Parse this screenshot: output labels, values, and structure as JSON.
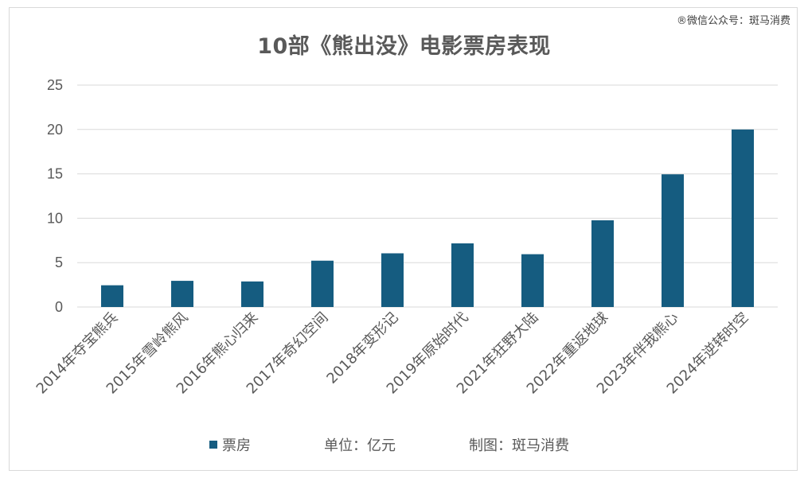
{
  "watermark": "®微信公众号：斑马消费",
  "colors": {
    "bar": "#155c80",
    "grid": "#d9d9d9",
    "text": "#595959"
  },
  "legend": {
    "series_label": "票房",
    "unit_note": "单位：亿元",
    "credit_note": "制图：斑马消费"
  },
  "chart_data": {
    "type": "bar",
    "title": "10部《熊出没》电影票房表现",
    "xlabel": "",
    "ylabel": "",
    "ylim": [
      0,
      25
    ],
    "yticks": [
      "0",
      "5",
      "10",
      "15",
      "20",
      "25"
    ],
    "grid": true,
    "legend_position": "bottom",
    "categories": [
      "2014年夺宝熊兵",
      "2015年雪岭熊风",
      "2016年熊心归来",
      "2017年奇幻空间",
      "2018年变形记",
      "2019年原始时代",
      "2021年狂野大陆",
      "2022年重返地球",
      "2023年伴我熊心",
      "2024年逆转时空"
    ],
    "series": [
      {
        "name": "票房",
        "values": [
          2.45,
          2.95,
          2.88,
          5.22,
          6.05,
          7.17,
          5.95,
          9.77,
          14.95,
          20.0
        ]
      }
    ]
  }
}
